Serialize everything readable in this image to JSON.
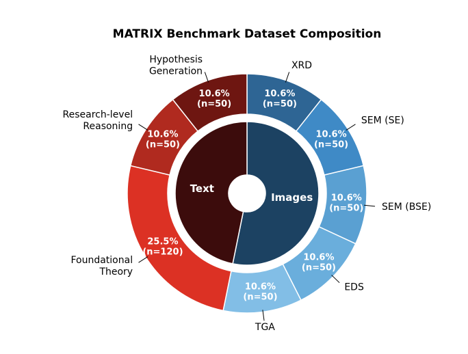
{
  "chart_data": {
    "type": "nested-pie",
    "title": "MATRIX Benchmark Dataset Composition",
    "inner": {
      "categories": [
        "Images",
        "Text"
      ],
      "values": [
        250,
        220
      ],
      "colors": [
        "#1c4262",
        "#3c0c0c"
      ]
    },
    "outer": {
      "categories": [
        "XRD",
        "SEM (SE)",
        "SEM (BSE)",
        "EDS",
        "TGA",
        "Foundational\nTheory",
        "Research-level\nReasoning",
        "Hypothesis\nGeneration"
      ],
      "values": [
        50,
        50,
        50,
        50,
        50,
        120,
        50,
        50
      ],
      "value_labels": [
        [
          "10.6%",
          "(n=50)"
        ],
        [
          "10.6%",
          "(n=50)"
        ],
        [
          "10.6%",
          "(n=50)"
        ],
        [
          "10.6%",
          "(n=50)"
        ],
        [
          "10.6%",
          "(n=50)"
        ],
        [
          "25.5%",
          "(n=120)"
        ],
        [
          "10.6%",
          "(n=50)"
        ],
        [
          "10.6%",
          "(n=50)"
        ]
      ],
      "colors": [
        "#2e6594",
        "#3f8ac6",
        "#5aa0d2",
        "#6aaedc",
        "#82bee6",
        "#dc3124",
        "#b02a1f",
        "#6e1611"
      ]
    }
  }
}
